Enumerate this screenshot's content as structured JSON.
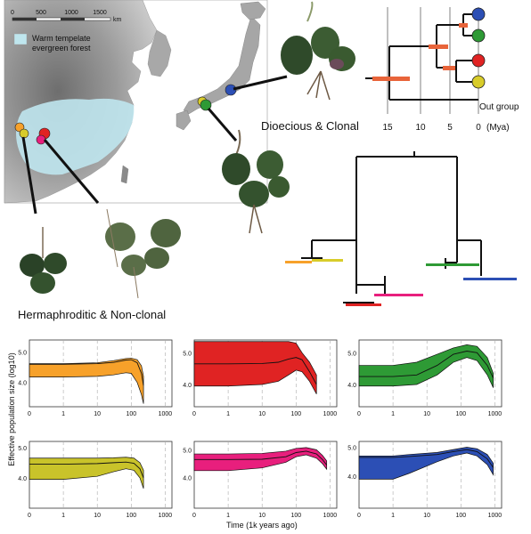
{
  "map": {
    "scale_label": "km",
    "scale_ticks": [
      "0",
      "500",
      "1000",
      "1500"
    ],
    "legend_label_line1": "Warm tempelate",
    "legend_label_line2": "evergreen forest",
    "colors": {
      "sea": "#ffffff",
      "land": "#b8b8b8",
      "highland": "#7a7a7a",
      "forest": "#bfe6ee"
    }
  },
  "labels": {
    "dioecious": "Dioecious & Clonal",
    "herma": "Hermaphroditic & Non-clonal",
    "ylabel": "Effective population size (log10)",
    "xlabel": "Time (1k years ago)"
  },
  "dated_tree": {
    "axis_ticks": [
      "15",
      "10",
      "5",
      "0"
    ],
    "axis_unit": "(Mya)",
    "outgroup_label": "Out group",
    "tip_colors": [
      "#2c4fb5",
      "#2e9a35",
      "#e02323",
      "#d8cc2a"
    ],
    "bar_color": "#e8643a"
  },
  "populations": [
    {
      "name": "orange",
      "color": "#f7a12a"
    },
    {
      "name": "red",
      "color": "#e02323"
    },
    {
      "name": "green",
      "color": "#2e9a35"
    },
    {
      "name": "yellow",
      "color": "#c9c32a"
    },
    {
      "name": "pink",
      "color": "#e81f7d"
    },
    {
      "name": "blue",
      "color": "#2c4fb5"
    }
  ],
  "chart_data": [
    {
      "type": "area",
      "series": "orange",
      "color": "#f7a12a",
      "x": [
        0.1,
        1,
        10,
        30,
        70,
        100,
        150,
        200,
        230
      ],
      "y_median": [
        4.6,
        4.6,
        4.62,
        4.66,
        4.74,
        4.75,
        4.65,
        4.3,
        3.9
      ],
      "y_lower": [
        4.18,
        4.18,
        4.2,
        4.25,
        4.32,
        4.3,
        4.0,
        3.6,
        3.3
      ],
      "y_upper": [
        4.62,
        4.62,
        4.65,
        4.72,
        4.79,
        4.8,
        4.75,
        4.55,
        4.2
      ],
      "xticks": [
        "0",
        "1",
        "10",
        "100",
        "1000"
      ],
      "yticks": [
        "4.0",
        "5.0"
      ],
      "xscale": "log",
      "ylim": [
        3.2,
        5.4
      ]
    },
    {
      "type": "area",
      "series": "red",
      "color": "#e02323",
      "x": [
        0.1,
        1,
        10,
        30,
        60,
        100,
        150,
        250,
        400
      ],
      "y_median": [
        4.65,
        4.65,
        4.66,
        4.7,
        4.8,
        4.85,
        4.78,
        4.4,
        4.0
      ],
      "y_lower": [
        3.95,
        3.95,
        4.0,
        4.1,
        4.3,
        4.45,
        4.4,
        4.1,
        3.7
      ],
      "y_upper": [
        5.35,
        5.35,
        5.35,
        5.35,
        5.35,
        5.3,
        5.0,
        4.7,
        4.3
      ],
      "xticks": [
        "0",
        "1",
        "10",
        "100",
        "1000"
      ],
      "yticks": [
        "4.0",
        "5.0"
      ],
      "xscale": "log",
      "ylim": [
        3.3,
        5.4
      ]
    },
    {
      "type": "area",
      "series": "green",
      "color": "#2e9a35",
      "x": [
        0.1,
        1,
        5,
        20,
        60,
        150,
        300,
        600,
        900
      ],
      "y_median": [
        4.25,
        4.25,
        4.3,
        4.6,
        4.95,
        5.05,
        5.0,
        4.6,
        4.2
      ],
      "y_lower": [
        3.95,
        3.95,
        4.0,
        4.3,
        4.7,
        4.85,
        4.75,
        4.3,
        3.9
      ],
      "y_upper": [
        4.6,
        4.6,
        4.7,
        4.95,
        5.15,
        5.25,
        5.2,
        4.85,
        4.35
      ],
      "xticks": [
        "0",
        "1",
        "10",
        "100",
        "1000"
      ],
      "yticks": [
        "4.0",
        "5.0"
      ],
      "xscale": "log",
      "ylim": [
        3.3,
        5.4
      ]
    },
    {
      "type": "area",
      "series": "yellow",
      "color": "#c9c32a",
      "x": [
        0.1,
        1,
        10,
        30,
        70,
        120,
        180,
        230
      ],
      "y_median": [
        4.45,
        4.45,
        4.47,
        4.5,
        4.52,
        4.48,
        4.3,
        4.0
      ],
      "y_lower": [
        3.95,
        3.95,
        4.05,
        4.2,
        4.3,
        4.25,
        4.0,
        3.65
      ],
      "y_upper": [
        4.65,
        4.65,
        4.65,
        4.66,
        4.68,
        4.65,
        4.5,
        4.25
      ],
      "xticks": [
        "0",
        "1",
        "10",
        "100",
        "1000"
      ],
      "yticks": [
        "4.0",
        "5.0"
      ],
      "xscale": "log",
      "ylim": [
        3.0,
        5.2
      ]
    },
    {
      "type": "area",
      "series": "pink",
      "color": "#e81f7d",
      "x": [
        0.1,
        1,
        10,
        50,
        100,
        200,
        400,
        600,
        800
      ],
      "y_median": [
        4.65,
        4.65,
        4.66,
        4.75,
        4.9,
        4.95,
        4.85,
        4.65,
        4.45
      ],
      "y_lower": [
        4.25,
        4.25,
        4.35,
        4.55,
        4.75,
        4.82,
        4.7,
        4.5,
        4.3
      ],
      "y_upper": [
        4.85,
        4.85,
        4.87,
        4.95,
        5.05,
        5.08,
        5.0,
        4.8,
        4.6
      ],
      "xticks": [
        "0",
        "1",
        "10",
        "100",
        "1000"
      ],
      "yticks": [
        "4.0",
        "5.0"
      ],
      "xscale": "log",
      "ylim": [
        2.9,
        5.3
      ]
    },
    {
      "type": "area",
      "series": "blue",
      "color": "#2c4fb5",
      "x": [
        0.1,
        1,
        3,
        20,
        60,
        150,
        300,
        600,
        900
      ],
      "y_median": [
        4.65,
        4.65,
        4.68,
        4.75,
        4.85,
        4.92,
        4.85,
        4.6,
        4.3
      ],
      "y_lower": [
        3.9,
        3.9,
        4.1,
        4.5,
        4.7,
        4.8,
        4.7,
        4.4,
        4.05
      ],
      "y_upper": [
        4.7,
        4.7,
        4.75,
        4.82,
        4.92,
        5.0,
        4.95,
        4.75,
        4.45
      ],
      "xticks": [
        "0",
        "1",
        "10",
        "100",
        "1000"
      ],
      "yticks": [
        "4.0",
        "5.0"
      ],
      "xscale": "log",
      "ylim": [
        2.9,
        5.2
      ]
    }
  ]
}
